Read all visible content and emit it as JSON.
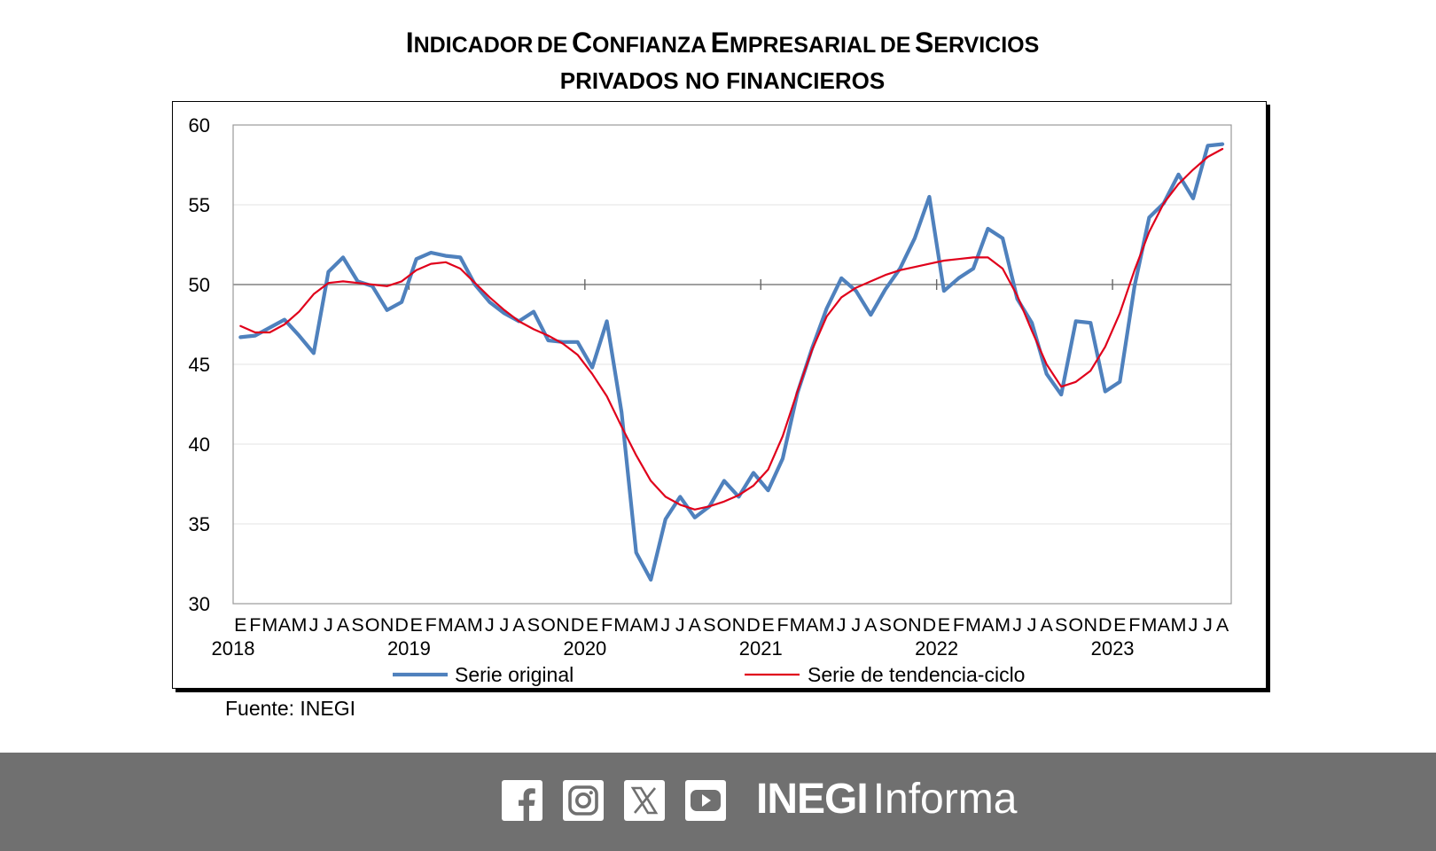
{
  "title_line1": "Indicador de Confianza Empresarial de Servicios",
  "title_line2": "privados no financieros",
  "source": "Fuente: INEGI",
  "footer": {
    "brand_bold": "INEGI",
    "brand_light": "Informa",
    "social_icons": [
      "facebook-icon",
      "instagram-icon",
      "x-icon",
      "youtube-icon"
    ]
  },
  "colors": {
    "original": "#4f81bd",
    "trend": "#e0001b",
    "footer_bg": "#707070"
  },
  "chart_data": {
    "type": "line",
    "title": "Indicador de Confianza Empresarial de Servicios privados no financieros",
    "ylim": [
      30,
      60
    ],
    "yticks": [
      "30",
      "35",
      "40",
      "45",
      "50",
      "55",
      "60"
    ],
    "reference_line": 50,
    "month_labels": [
      "E",
      "F",
      "M",
      "A",
      "M",
      "J",
      "J",
      "A",
      "S",
      "O",
      "N",
      "D"
    ],
    "last_year_month_labels": [
      "E",
      "F",
      "M",
      "A",
      "M",
      "J",
      "J",
      "A"
    ],
    "years": [
      "2018",
      "2019",
      "2020",
      "2021",
      "2022",
      "2023"
    ],
    "legend_placement": "bottom",
    "series": [
      {
        "name": "Serie original",
        "values": [
          46.7,
          46.8,
          47.3,
          47.8,
          46.8,
          45.7,
          50.8,
          51.7,
          50.2,
          49.9,
          48.4,
          48.9,
          51.6,
          52.0,
          51.8,
          51.7,
          50.0,
          48.9,
          48.2,
          47.7,
          48.3,
          46.5,
          46.4,
          46.4,
          44.8,
          47.7,
          42.0,
          33.2,
          31.5,
          35.3,
          36.7,
          35.4,
          36.1,
          37.7,
          36.7,
          38.2,
          37.1,
          39.1,
          43.2,
          46.0,
          48.5,
          50.4,
          49.6,
          48.1,
          49.7,
          51.0,
          52.9,
          55.5,
          49.6,
          50.4,
          51.0,
          53.5,
          52.9,
          49.1,
          47.6,
          44.4,
          43.1,
          47.7,
          47.6,
          43.3,
          43.9,
          49.9,
          54.2,
          55.1,
          56.9,
          55.4,
          58.7,
          58.8
        ]
      },
      {
        "name": "Serie de tendencia-ciclo",
        "values": [
          47.4,
          47.0,
          47.0,
          47.5,
          48.3,
          49.4,
          50.1,
          50.2,
          50.1,
          50.0,
          49.9,
          50.2,
          50.9,
          51.3,
          51.4,
          51.0,
          50.1,
          49.2,
          48.4,
          47.7,
          47.2,
          46.8,
          46.3,
          45.6,
          44.4,
          43.0,
          41.1,
          39.3,
          37.7,
          36.7,
          36.2,
          35.9,
          36.1,
          36.4,
          36.8,
          37.4,
          38.4,
          40.5,
          43.3,
          45.9,
          48.0,
          49.2,
          49.8,
          50.2,
          50.6,
          50.9,
          51.1,
          51.3,
          51.5,
          51.6,
          51.7,
          51.7,
          51.0,
          49.3,
          47.1,
          45.0,
          43.6,
          43.9,
          44.6,
          46.1,
          48.2,
          50.9,
          53.3,
          55.1,
          56.3,
          57.2,
          58.0,
          58.5
        ]
      }
    ]
  }
}
